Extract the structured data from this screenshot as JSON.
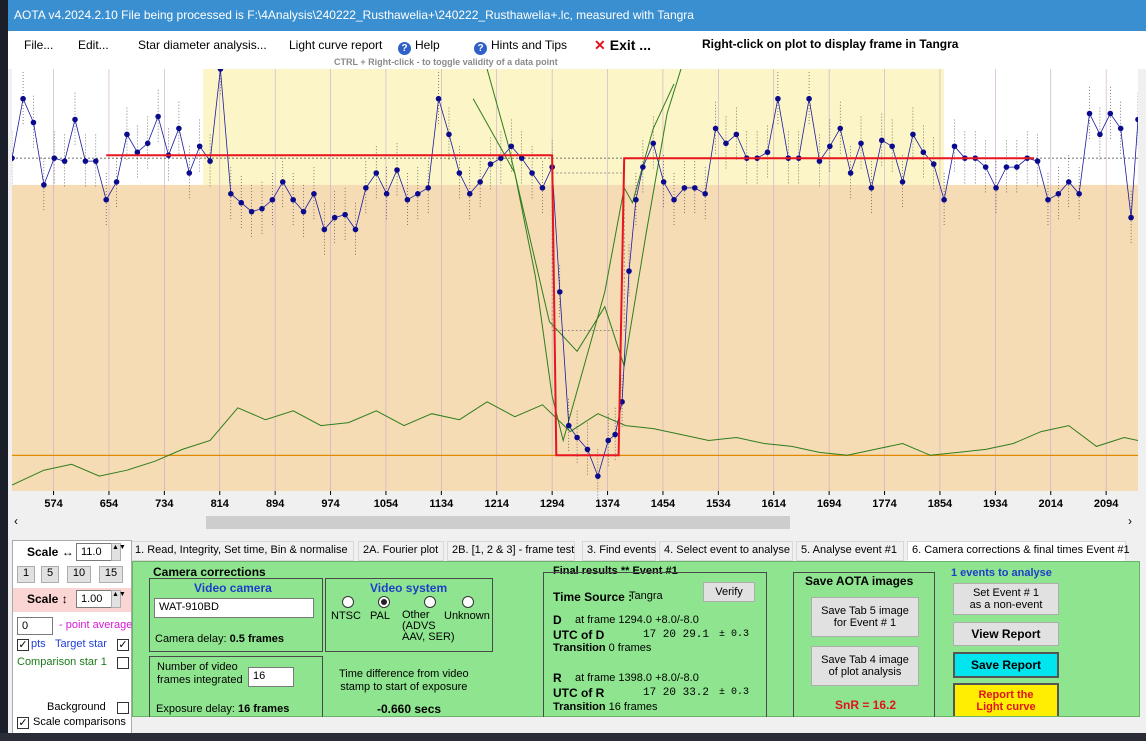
{
  "window": {
    "title": "AOTA v4.2024.2.10   File being processed is F:\\4Analysis\\240222_Rusthawelia+\\240222_Rusthawelia+.lc, measured with Tangra"
  },
  "menu": {
    "file": "File...",
    "edit": "Edit...",
    "star_diameter": "Star diameter analysis...",
    "light_curve_report": "Light curve report",
    "help": "Help",
    "hints": "Hints and Tips",
    "exit": "Exit ...",
    "right_click_note": "Right-click on plot to display frame in Tangra",
    "ctrl_hint": "CTRL + Right-click  -  to toggle validity of a data point",
    "help_icon": "question-icon",
    "exit_icon": "close-icon"
  },
  "chart_data": {
    "type": "line",
    "x_ticks": [
      574,
      654,
      734,
      814,
      894,
      974,
      1054,
      1134,
      1214,
      1294,
      1374,
      1454,
      1534,
      1614,
      1694,
      1774,
      1854,
      1934,
      2014,
      2094
    ],
    "xlim": [
      514,
      2140
    ],
    "ylim": [
      -0.12,
      1.3
    ],
    "mean_level": 1.0,
    "event_level": 0.0,
    "event_D": 1294,
    "event_R": 1398,
    "series": [
      {
        "points": [
          [
            514,
            1.0
          ],
          [
            530,
            1.2
          ],
          [
            545,
            1.12
          ],
          [
            560,
            0.91
          ],
          [
            575,
            1.0
          ],
          [
            590,
            0.99
          ],
          [
            605,
            1.13
          ],
          [
            620,
            0.99
          ],
          [
            635,
            0.99
          ],
          [
            650,
            0.86
          ],
          [
            665,
            0.92
          ],
          [
            680,
            1.08
          ],
          [
            695,
            1.02
          ],
          [
            710,
            1.05
          ],
          [
            725,
            1.14
          ],
          [
            740,
            1.01
          ],
          [
            755,
            1.1
          ],
          [
            770,
            0.95
          ],
          [
            785,
            1.04
          ],
          [
            800,
            0.99
          ],
          [
            815,
            1.3
          ],
          [
            830,
            0.88
          ],
          [
            845,
            0.85
          ],
          [
            860,
            0.82
          ],
          [
            875,
            0.83
          ],
          [
            890,
            0.86
          ],
          [
            905,
            0.92
          ],
          [
            920,
            0.86
          ],
          [
            935,
            0.82
          ],
          [
            950,
            0.88
          ],
          [
            965,
            0.76
          ],
          [
            980,
            0.8
          ],
          [
            995,
            0.81
          ],
          [
            1010,
            0.76
          ],
          [
            1025,
            0.9
          ],
          [
            1040,
            0.95
          ],
          [
            1055,
            0.88
          ],
          [
            1070,
            0.96
          ],
          [
            1085,
            0.86
          ],
          [
            1100,
            0.88
          ],
          [
            1115,
            0.9
          ],
          [
            1130,
            1.2
          ],
          [
            1145,
            1.08
          ],
          [
            1160,
            0.95
          ],
          [
            1175,
            0.88
          ],
          [
            1190,
            0.92
          ],
          [
            1205,
            0.98
          ],
          [
            1220,
            1.0
          ],
          [
            1235,
            1.04
          ],
          [
            1250,
            1.0
          ],
          [
            1265,
            0.95
          ],
          [
            1280,
            0.9
          ],
          [
            1294,
            0.97
          ],
          [
            1305,
            0.55
          ],
          [
            1318,
            0.1
          ],
          [
            1330,
            0.06
          ],
          [
            1345,
            0.02
          ],
          [
            1360,
            -0.07
          ],
          [
            1375,
            0.05
          ],
          [
            1385,
            0.07
          ],
          [
            1395,
            0.18
          ],
          [
            1405,
            0.62
          ],
          [
            1415,
            0.86
          ],
          [
            1425,
            0.97
          ],
          [
            1440,
            1.05
          ],
          [
            1455,
            0.92
          ],
          [
            1470,
            0.86
          ],
          [
            1485,
            0.9
          ],
          [
            1500,
            0.9
          ],
          [
            1515,
            0.88
          ],
          [
            1530,
            1.1
          ],
          [
            1545,
            1.05
          ],
          [
            1560,
            1.08
          ],
          [
            1575,
            1.0
          ],
          [
            1590,
            1.0
          ],
          [
            1605,
            1.02
          ],
          [
            1620,
            1.2
          ],
          [
            1635,
            1.0
          ],
          [
            1650,
            1.0
          ],
          [
            1665,
            1.2
          ],
          [
            1680,
            0.99
          ],
          [
            1695,
            1.04
          ],
          [
            1710,
            1.1
          ],
          [
            1725,
            0.95
          ],
          [
            1740,
            1.05
          ],
          [
            1755,
            0.9
          ],
          [
            1770,
            1.06
          ],
          [
            1785,
            1.04
          ],
          [
            1800,
            0.92
          ],
          [
            1815,
            1.08
          ],
          [
            1830,
            1.02
          ],
          [
            1845,
            0.98
          ],
          [
            1860,
            0.86
          ],
          [
            1875,
            1.04
          ],
          [
            1890,
            1.0
          ],
          [
            1905,
            1.0
          ],
          [
            1920,
            0.97
          ],
          [
            1935,
            0.9
          ],
          [
            1950,
            0.97
          ],
          [
            1965,
            0.97
          ],
          [
            1980,
            1.0
          ],
          [
            1995,
            0.99
          ],
          [
            2010,
            0.86
          ],
          [
            2025,
            0.88
          ],
          [
            2040,
            0.92
          ],
          [
            2055,
            0.88
          ],
          [
            2070,
            1.15
          ],
          [
            2085,
            1.08
          ],
          [
            2100,
            1.15
          ],
          [
            2115,
            1.1
          ],
          [
            2130,
            0.8
          ],
          [
            2140,
            1.13
          ]
        ]
      },
      {
        "points": [
          [
            514,
            -0.1
          ],
          [
            560,
            -0.05
          ],
          [
            600,
            -0.03
          ],
          [
            640,
            -0.07
          ],
          [
            680,
            -0.05
          ],
          [
            720,
            -0.02
          ],
          [
            760,
            0.02
          ],
          [
            800,
            0.05
          ],
          [
            840,
            0.16
          ],
          [
            880,
            0.12
          ],
          [
            920,
            0.15
          ],
          [
            960,
            0.1
          ],
          [
            1000,
            0.11
          ],
          [
            1040,
            0.15
          ],
          [
            1080,
            0.1
          ],
          [
            1120,
            0.14
          ],
          [
            1160,
            0.12
          ],
          [
            1200,
            0.18
          ],
          [
            1240,
            0.13
          ],
          [
            1280,
            0.17
          ],
          [
            1320,
            0.08
          ],
          [
            1360,
            0.14
          ],
          [
            1400,
            0.1
          ],
          [
            1440,
            0.09
          ],
          [
            1480,
            0.07
          ],
          [
            1520,
            0.05
          ],
          [
            1560,
            0.06
          ],
          [
            1600,
            0.04
          ],
          [
            1640,
            0.03
          ],
          [
            1680,
            0.01
          ],
          [
            1720,
            0.0
          ],
          [
            1760,
            0.02
          ],
          [
            1800,
            0.04
          ],
          [
            1840,
            0.0
          ],
          [
            1880,
            0.01
          ],
          [
            1920,
            0.02
          ],
          [
            1960,
            0.04
          ],
          [
            2000,
            0.08
          ],
          [
            2040,
            0.1
          ],
          [
            2080,
            0.03
          ],
          [
            2120,
            0.06
          ],
          [
            2140,
            0.05
          ]
        ]
      },
      {
        "points": [
          [
            1180,
            1.2
          ],
          [
            1240,
            0.95
          ],
          [
            1270,
            0.6
          ],
          [
            1294,
            0.2
          ],
          [
            1310,
            0.05
          ],
          [
            1340,
            0.3
          ],
          [
            1370,
            0.55
          ],
          [
            1398,
            0.9
          ],
          [
            1410,
            0.85
          ],
          [
            1440,
            1.1
          ],
          [
            1470,
            1.25
          ]
        ]
      },
      {
        "points": [
          [
            1200,
            1.3
          ],
          [
            1230,
            1.05
          ],
          [
            1260,
            0.75
          ],
          [
            1290,
            0.45
          ],
          [
            1330,
            0.35
          ],
          [
            1370,
            0.5
          ],
          [
            1398,
            0.3
          ],
          [
            1430,
            0.75
          ],
          [
            1460,
            1.15
          ],
          [
            1480,
            1.3
          ]
        ]
      },
      {
        "points": [
          [
            650,
            1.01
          ],
          [
            1294,
            1.01
          ],
          [
            1300,
            0.0
          ],
          [
            1390,
            0.0
          ],
          [
            1398,
            1.0
          ],
          [
            1990,
            1.0
          ]
        ]
      }
    ]
  },
  "tabs": [
    "1.  Read, Integrity, Set time, Bin & normalise",
    "2A. Fourier plot",
    "2B. [1, 2 & 3] - frame test",
    "3. Find events",
    "4. Select event to analyse",
    "5. Analyse event #1",
    "6. Camera corrections & final times Event #1"
  ],
  "left_panel": {
    "scale_h_label": "Scale ↔",
    "scale_h_value": "11.0",
    "presets": [
      "1",
      "5",
      "10",
      "15"
    ],
    "scale_v_label": "Scale ↕",
    "scale_v_value": "1.00",
    "point_avg_value": "0",
    "point_avg_label": "- point average",
    "pts_label": "pts",
    "target_label": "Target star",
    "comp_label": "Comparison star 1",
    "background_label": "Background",
    "scale_comparisons_label": "Scale comparisons"
  },
  "camera_corrections": {
    "title": "Camera corrections",
    "video_camera_title": "Video camera",
    "camera_value": "WAT-910BD",
    "camera_delay_label": "Camera delay:",
    "camera_delay_value": "0.5 frames",
    "video_system_title": "Video system",
    "ntsc": "NTSC",
    "pal": "PAL",
    "other": "Other\n(ADVS\nAAV, SER)",
    "unknown": "Unknown",
    "frames_integrated_label": "Number of video\nframes integrated",
    "frames_integrated_value": "16",
    "exposure_delay_label": "Exposure delay:",
    "exposure_delay_value": "16 frames",
    "time_diff_label": "Time difference from video\nstamp to start of exposure",
    "time_diff_value": "-0.660 secs"
  },
  "final_results": {
    "title": "Final results  **   Event #1",
    "verify": "Verify",
    "time_source_label": "Time Source :",
    "time_source_value": "Tangra",
    "d_label": "D",
    "d_value": "at frame 1294.0  +8.0/-8.0",
    "utc_d_label": "UTC of D",
    "utc_d_value": "17 20 29.1",
    "utc_d_err": "± 0.3",
    "transition_d_label": "Transition",
    "transition_d_value": "0 frames",
    "r_label": "R",
    "r_value": "at frame 1398.0  +8.0/-8.0",
    "utc_r_label": "UTC of R",
    "utc_r_value": "17 20 33.2",
    "utc_r_err": "± 0.3",
    "transition_r_label": "Transition",
    "transition_r_value": "16 frames"
  },
  "save_images": {
    "title": "Save AOTA images",
    "tab5": "Save Tab 5 image\nfor Event # 1",
    "tab4": "Save Tab 4 image\nof plot analysis",
    "snr": "SnR = 16.2"
  },
  "right_actions": {
    "events_label": "1  events to analyse",
    "non_event": "Set Event # 1\nas a non-event",
    "view_report": "View Report",
    "save_report": "Save Report",
    "report_lc": "Report the\nLight curve"
  },
  "colors": {
    "titlebar": "#3a8fd0",
    "plot_bg": "#f5dcb4",
    "plot_top": "#fbf5c8",
    "green_panel": "#8fe58f",
    "fit_red": "#e8141e",
    "series_blue": "#1a1aa0",
    "model_green": "#2e7d1e",
    "baseline_orange": "#e08a00",
    "save_report": "#00e5ee",
    "report_lc": "#ffee00"
  }
}
